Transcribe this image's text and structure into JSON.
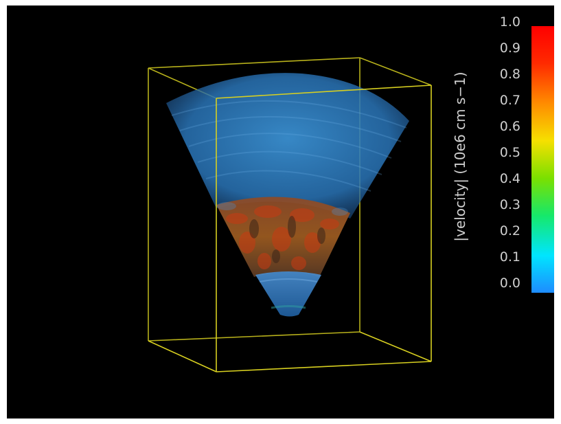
{
  "colorbar": {
    "label": "|velocity| (10e6 cm s−1)",
    "ticks": [
      "0.0",
      "0.1",
      "0.2",
      "0.3",
      "0.4",
      "0.5",
      "0.6",
      "0.7",
      "0.8",
      "0.9",
      "1.0"
    ],
    "range": [
      0.0,
      1.0
    ],
    "colormap": [
      "#1e8cff",
      "#00e5ff",
      "#16e86a",
      "#7be000",
      "#f6e000",
      "#ff8c00",
      "#ff2a00",
      "#ff0000"
    ]
  },
  "box_color": "#d8d020"
}
